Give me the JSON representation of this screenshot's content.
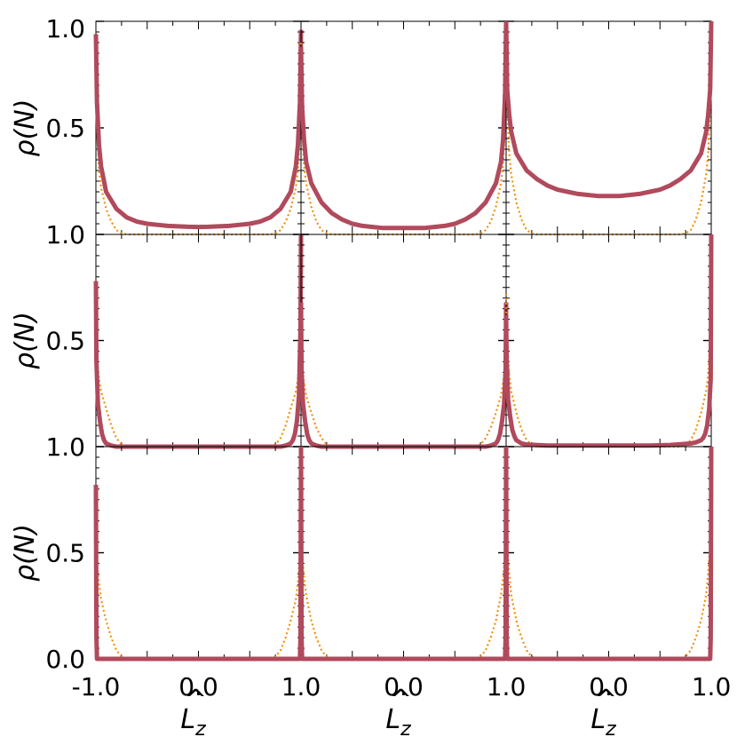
{
  "figure": {
    "ylabel": "ρ(N)",
    "xlabel": "L̂z",
    "xlabel_main": "L",
    "xlabel_hat": "^",
    "xlabel_sub": "z",
    "ylabel_main": "ρ(N)",
    "yticks": [
      "1.0",
      "0.5",
      "1.0"
    ],
    "ytick_last_row": [
      "1.0",
      "0.5",
      "0.0"
    ],
    "xticks": [
      "-1.0",
      "0.0",
      "1.0"
    ],
    "colors": {
      "thick": "#b04a5c",
      "dotted": "#f0900c"
    }
  },
  "chart_data": [
    {
      "type": "line",
      "panel": "r1c1",
      "xlim": [
        -1,
        1
      ],
      "ylim": [
        0,
        1
      ],
      "series": [
        {
          "style": "thick",
          "x": [
            -1.0,
            -0.99,
            -0.97,
            -0.95,
            -0.9,
            -0.8,
            -0.7,
            -0.6,
            -0.5,
            -0.4,
            -0.3,
            -0.2,
            -0.1,
            0.0,
            0.1,
            0.2,
            0.3,
            0.4,
            0.5,
            0.6,
            0.7,
            0.8,
            0.9,
            0.95,
            0.97,
            0.99,
            1.0
          ],
          "y": [
            0.94,
            0.62,
            0.42,
            0.32,
            0.2,
            0.12,
            0.08,
            0.06,
            0.05,
            0.045,
            0.04,
            0.038,
            0.036,
            0.035,
            0.036,
            0.038,
            0.04,
            0.045,
            0.05,
            0.06,
            0.08,
            0.12,
            0.2,
            0.32,
            0.42,
            0.62,
            0.96
          ]
        },
        {
          "style": "dotted",
          "x": [
            -1.0,
            -0.99,
            -0.97,
            -0.95,
            -0.9,
            -0.85,
            -0.8,
            -0.75,
            -0.7,
            0.7,
            0.75,
            0.8,
            0.85,
            0.9,
            0.95,
            0.97,
            0.99,
            1.0
          ],
          "y": [
            0.9,
            0.5,
            0.3,
            0.22,
            0.12,
            0.06,
            0.02,
            0.005,
            0.0,
            0.0,
            0.005,
            0.02,
            0.06,
            0.12,
            0.22,
            0.3,
            0.5,
            0.9
          ]
        }
      ]
    },
    {
      "type": "line",
      "panel": "r1c2",
      "xlim": [
        -1,
        1
      ],
      "ylim": [
        0,
        1
      ],
      "series": [
        {
          "style": "thick",
          "x": [
            -1.0,
            -0.99,
            -0.97,
            -0.95,
            -0.9,
            -0.8,
            -0.7,
            -0.6,
            -0.5,
            -0.4,
            -0.3,
            -0.2,
            -0.1,
            0.0,
            0.1,
            0.2,
            0.3,
            0.4,
            0.5,
            0.6,
            0.7,
            0.8,
            0.9,
            0.95,
            0.97,
            0.99,
            1.0
          ],
          "y": [
            0.88,
            0.6,
            0.44,
            0.34,
            0.24,
            0.15,
            0.1,
            0.07,
            0.05,
            0.04,
            0.035,
            0.03,
            0.03,
            0.03,
            0.03,
            0.03,
            0.035,
            0.04,
            0.05,
            0.07,
            0.1,
            0.15,
            0.24,
            0.34,
            0.44,
            0.66,
            1.0
          ]
        },
        {
          "style": "dotted",
          "x": [
            -1.0,
            -0.99,
            -0.97,
            -0.95,
            -0.9,
            -0.85,
            -0.8,
            -0.75,
            -0.7,
            0.7,
            0.75,
            0.8,
            0.85,
            0.9,
            0.95,
            0.97,
            0.99,
            1.0
          ],
          "y": [
            0.9,
            0.52,
            0.32,
            0.24,
            0.13,
            0.06,
            0.02,
            0.005,
            0.0,
            0.0,
            0.005,
            0.02,
            0.06,
            0.13,
            0.24,
            0.32,
            0.52,
            0.9
          ]
        }
      ]
    },
    {
      "type": "line",
      "panel": "r1c3",
      "xlim": [
        -1,
        1
      ],
      "ylim": [
        0,
        1
      ],
      "series": [
        {
          "style": "thick",
          "x": [
            -1.0,
            -0.99,
            -0.97,
            -0.95,
            -0.9,
            -0.8,
            -0.7,
            -0.6,
            -0.5,
            -0.4,
            -0.3,
            -0.2,
            -0.1,
            0.0,
            0.1,
            0.2,
            0.3,
            0.4,
            0.5,
            0.6,
            0.7,
            0.8,
            0.9,
            0.95,
            0.97,
            0.99,
            1.0
          ],
          "y": [
            1.0,
            0.68,
            0.56,
            0.48,
            0.38,
            0.3,
            0.26,
            0.23,
            0.21,
            0.2,
            0.19,
            0.185,
            0.18,
            0.18,
            0.18,
            0.185,
            0.19,
            0.2,
            0.21,
            0.23,
            0.26,
            0.3,
            0.38,
            0.48,
            0.56,
            0.68,
            1.0
          ]
        },
        {
          "style": "dotted",
          "x": [
            -1.0,
            -0.99,
            -0.97,
            -0.95,
            -0.9,
            -0.85,
            -0.8,
            -0.75,
            -0.7,
            0.7,
            0.75,
            0.8,
            0.85,
            0.9,
            0.95,
            0.97,
            0.99,
            1.0
          ],
          "y": [
            0.98,
            0.6,
            0.38,
            0.28,
            0.15,
            0.07,
            0.02,
            0.005,
            0.0,
            0.0,
            0.005,
            0.02,
            0.07,
            0.15,
            0.28,
            0.38,
            0.6,
            0.98
          ]
        }
      ]
    },
    {
      "type": "line",
      "panel": "r2c1",
      "xlim": [
        -1,
        1
      ],
      "ylim": [
        0,
        1
      ],
      "series": [
        {
          "style": "thick",
          "x": [
            -1.0,
            -0.995,
            -0.98,
            -0.96,
            -0.94,
            -0.92,
            -0.9,
            -0.85,
            -0.8,
            0.8,
            0.85,
            0.9,
            0.92,
            0.94,
            0.96,
            0.98,
            0.995,
            1.0
          ],
          "y": [
            0.78,
            0.4,
            0.2,
            0.12,
            0.06,
            0.03,
            0.015,
            0.005,
            0.0,
            0.0,
            0.005,
            0.015,
            0.03,
            0.06,
            0.12,
            0.24,
            0.56,
            1.0
          ]
        },
        {
          "style": "dotted",
          "x": [
            -1.0,
            -0.99,
            -0.97,
            -0.95,
            -0.9,
            -0.85,
            -0.8,
            -0.75,
            -0.7,
            0.7,
            0.75,
            0.8,
            0.85,
            0.9,
            0.95,
            0.97,
            0.99,
            1.0
          ],
          "y": [
            0.48,
            0.42,
            0.32,
            0.26,
            0.18,
            0.1,
            0.04,
            0.01,
            0.0,
            0.0,
            0.01,
            0.04,
            0.1,
            0.18,
            0.26,
            0.32,
            0.42,
            0.7
          ]
        }
      ]
    },
    {
      "type": "line",
      "panel": "r2c2",
      "xlim": [
        -1,
        1
      ],
      "ylim": [
        0,
        1
      ],
      "series": [
        {
          "style": "thick",
          "x": [
            -1.0,
            -0.995,
            -0.98,
            -0.96,
            -0.94,
            -0.92,
            -0.9,
            -0.85,
            -0.8,
            0.8,
            0.85,
            0.9,
            0.92,
            0.94,
            0.96,
            0.98,
            0.995,
            1.0
          ],
          "y": [
            0.68,
            0.36,
            0.2,
            0.12,
            0.06,
            0.03,
            0.015,
            0.005,
            0.0,
            0.0,
            0.005,
            0.015,
            0.03,
            0.06,
            0.12,
            0.2,
            0.36,
            0.68
          ]
        },
        {
          "style": "dotted",
          "x": [
            -1.0,
            -0.99,
            -0.97,
            -0.95,
            -0.9,
            -0.85,
            -0.8,
            -0.75,
            -0.7,
            0.7,
            0.75,
            0.8,
            0.85,
            0.9,
            0.95,
            0.97,
            0.99,
            1.0
          ],
          "y": [
            0.44,
            0.38,
            0.3,
            0.24,
            0.16,
            0.09,
            0.04,
            0.01,
            0.0,
            0.0,
            0.01,
            0.04,
            0.09,
            0.16,
            0.24,
            0.3,
            0.38,
            0.44
          ]
        }
      ]
    },
    {
      "type": "line",
      "panel": "r2c3",
      "xlim": [
        -1,
        1
      ],
      "ylim": [
        0,
        1
      ],
      "series": [
        {
          "style": "thick",
          "x": [
            -1.0,
            -0.995,
            -0.98,
            -0.96,
            -0.94,
            -0.92,
            -0.9,
            -0.85,
            -0.8,
            -0.6,
            -0.4,
            -0.2,
            0.0,
            0.2,
            0.4,
            0.6,
            0.8,
            0.85,
            0.9,
            0.92,
            0.94,
            0.96,
            0.98,
            0.995,
            1.0
          ],
          "y": [
            0.62,
            0.4,
            0.22,
            0.14,
            0.08,
            0.05,
            0.03,
            0.015,
            0.01,
            0.005,
            0.005,
            0.005,
            0.005,
            0.005,
            0.005,
            0.008,
            0.015,
            0.02,
            0.03,
            0.04,
            0.06,
            0.1,
            0.18,
            0.32,
            1.0
          ]
        },
        {
          "style": "dotted",
          "x": [
            -1.0,
            -0.99,
            -0.97,
            -0.95,
            -0.9,
            -0.85,
            -0.8,
            -0.75,
            -0.7,
            0.7,
            0.75,
            0.8,
            0.85,
            0.9,
            0.95,
            0.97,
            0.99,
            1.0
          ],
          "y": [
            0.72,
            0.5,
            0.34,
            0.26,
            0.16,
            0.08,
            0.03,
            0.008,
            0.0,
            0.0,
            0.008,
            0.03,
            0.08,
            0.16,
            0.26,
            0.34,
            0.5,
            0.72
          ]
        }
      ]
    },
    {
      "type": "line",
      "panel": "r3c1",
      "xlim": [
        -1,
        1
      ],
      "ylim": [
        0,
        1
      ],
      "series": [
        {
          "style": "thick",
          "x": [
            -1.0,
            -0.995,
            -0.99,
            0.99,
            0.995,
            1.0
          ],
          "y": [
            0.82,
            0.1,
            0.0,
            0.0,
            0.1,
            1.0
          ]
        },
        {
          "style": "dotted",
          "x": [
            -1.0,
            -0.99,
            -0.97,
            -0.95,
            -0.9,
            -0.85,
            -0.8,
            -0.75,
            -0.7,
            0.7,
            0.75,
            0.8,
            0.85,
            0.9,
            0.95,
            0.97,
            0.99,
            1.0
          ],
          "y": [
            0.5,
            0.44,
            0.36,
            0.28,
            0.18,
            0.1,
            0.04,
            0.01,
            0.0,
            0.0,
            0.01,
            0.04,
            0.1,
            0.18,
            0.28,
            0.36,
            0.5,
            0.68
          ]
        }
      ]
    },
    {
      "type": "line",
      "panel": "r3c2",
      "xlim": [
        -1,
        1
      ],
      "ylim": [
        0,
        1
      ],
      "series": [
        {
          "style": "thick",
          "x": [
            -1.0,
            -0.995,
            -0.99,
            0.99,
            0.995,
            1.0
          ],
          "y": [
            1.0,
            0.1,
            0.0,
            0.0,
            0.1,
            1.0
          ]
        },
        {
          "style": "dotted",
          "x": [
            -1.0,
            -0.99,
            -0.97,
            -0.95,
            -0.9,
            -0.85,
            -0.8,
            -0.75,
            -0.7,
            0.7,
            0.75,
            0.8,
            0.85,
            0.9,
            0.95,
            0.97,
            0.99,
            1.0
          ],
          "y": [
            0.58,
            0.5,
            0.38,
            0.3,
            0.18,
            0.1,
            0.04,
            0.01,
            0.0,
            0.0,
            0.01,
            0.04,
            0.1,
            0.18,
            0.3,
            0.38,
            0.5,
            0.72
          ]
        }
      ]
    },
    {
      "type": "line",
      "panel": "r3c3",
      "xlim": [
        -1,
        1
      ],
      "ylim": [
        0,
        1
      ],
      "series": [
        {
          "style": "thick",
          "x": [
            -1.0,
            -0.995,
            -0.99,
            0.99,
            0.995,
            1.0
          ],
          "y": [
            1.0,
            0.1,
            0.0,
            0.0,
            0.1,
            1.0
          ]
        },
        {
          "style": "dotted",
          "x": [
            -1.0,
            -0.99,
            -0.97,
            -0.95,
            -0.9,
            -0.85,
            -0.8,
            -0.75,
            -0.7,
            0.7,
            0.75,
            0.8,
            0.85,
            0.9,
            0.95,
            0.97,
            0.99,
            1.0
          ],
          "y": [
            0.72,
            0.54,
            0.4,
            0.3,
            0.18,
            0.1,
            0.04,
            0.01,
            0.0,
            0.0,
            0.01,
            0.04,
            0.1,
            0.18,
            0.3,
            0.4,
            0.54,
            0.72
          ]
        }
      ]
    }
  ]
}
